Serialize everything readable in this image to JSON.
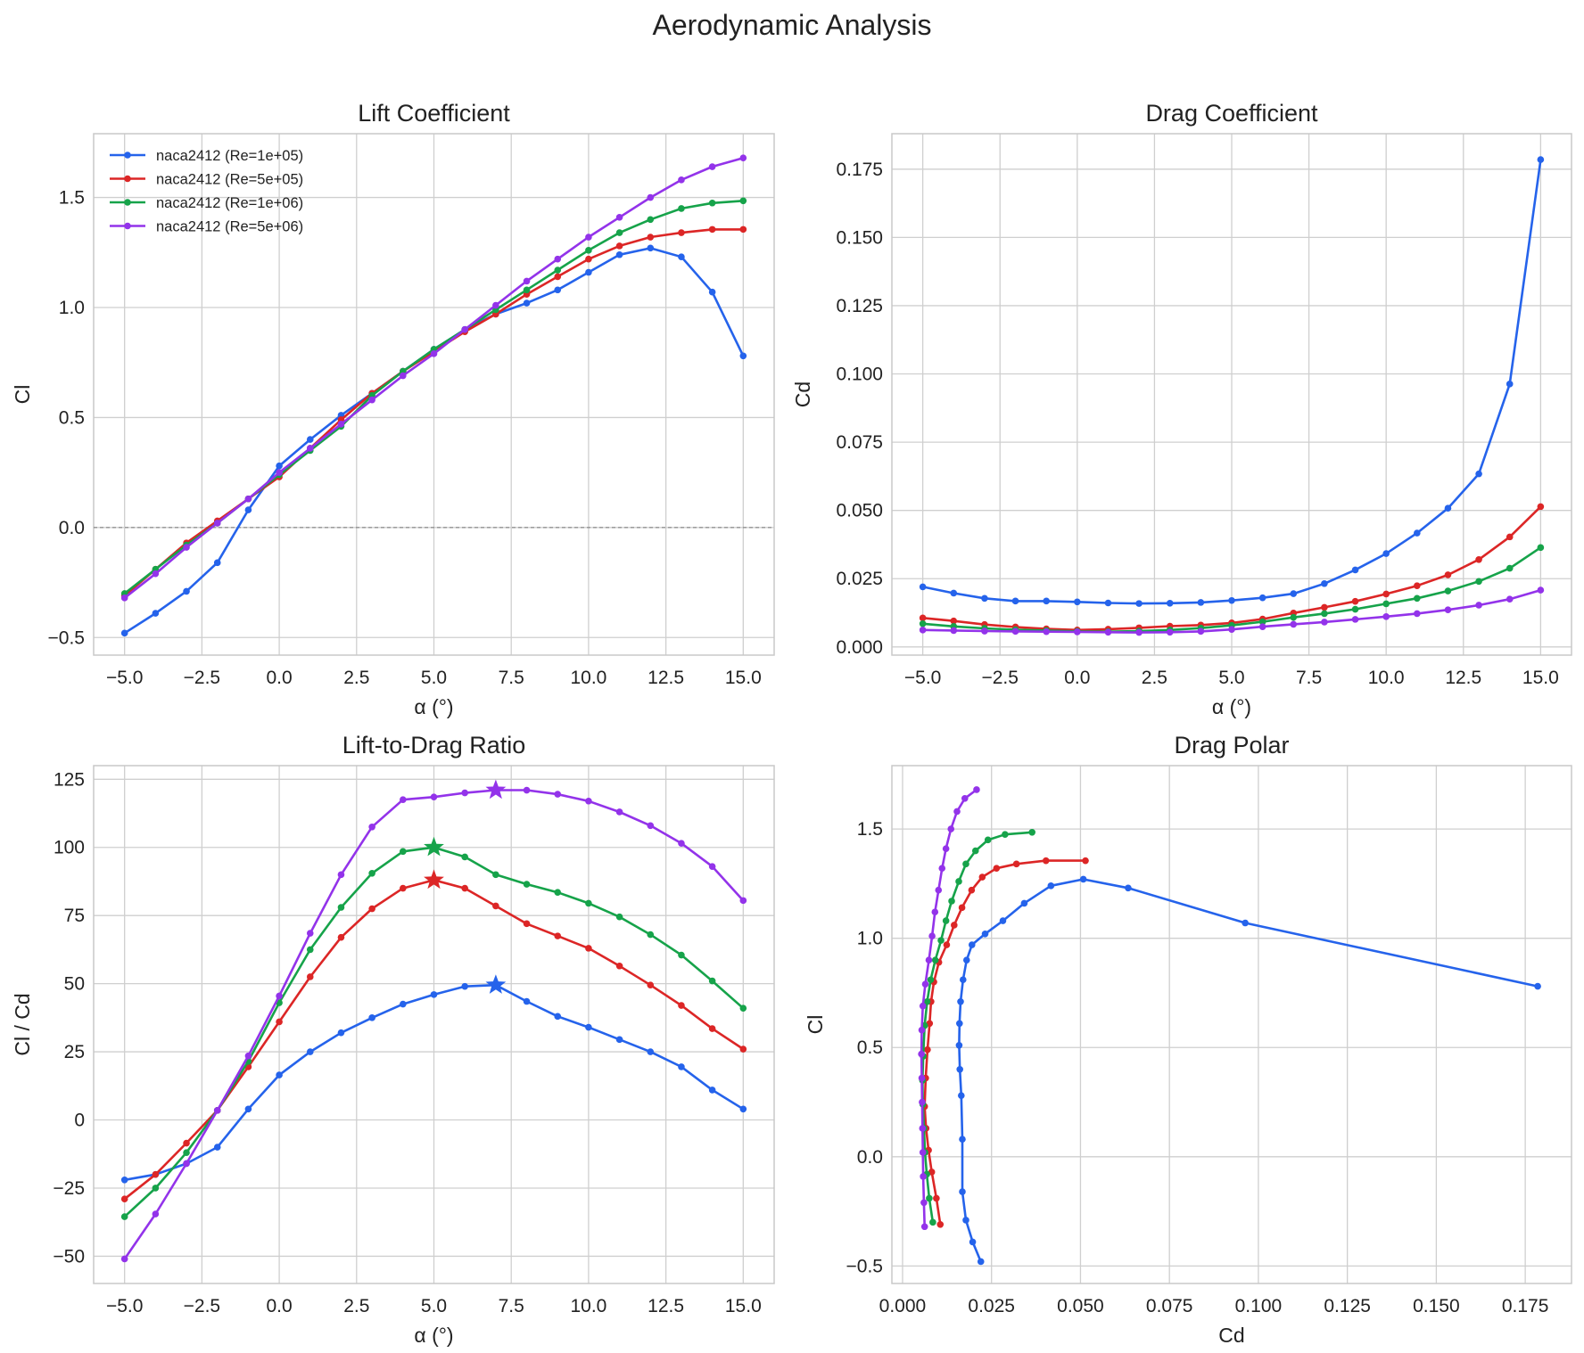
{
  "figure": {
    "title": "Aerodynamic Analysis"
  },
  "colors": {
    "re1e5": "#2563eb",
    "re5e5": "#dc2626",
    "re1e6": "#16a34a",
    "re5e6": "#9333ea",
    "grid": "#cfcfcf",
    "spine": "#c8c8c8"
  },
  "chart_data": [
    {
      "id": "lift",
      "type": "line",
      "title": "Lift Coefficient",
      "xlabel": "α (°)",
      "ylabel": "Cl",
      "xlim": [
        -6,
        16
      ],
      "ylim": [
        -0.58,
        1.79
      ],
      "xticks": [
        -5,
        -2.5,
        0,
        2.5,
        5,
        7.5,
        10,
        12.5,
        15
      ],
      "xtick_labels": [
        "−5.0",
        "−2.5",
        "0.0",
        "2.5",
        "5.0",
        "7.5",
        "10.0",
        "12.5",
        "15.0"
      ],
      "yticks": [
        -0.5,
        0,
        0.5,
        1.0,
        1.5
      ],
      "ytick_labels": [
        "−0.5",
        "0.0",
        "0.5",
        "1.0",
        "1.5"
      ],
      "grid": true,
      "zero_line": true,
      "legend": "upper-left",
      "x": [
        -5,
        -4,
        -3,
        -2,
        -1,
        0,
        1,
        2,
        3,
        4,
        5,
        6,
        7,
        8,
        9,
        10,
        11,
        12,
        13,
        14,
        15
      ],
      "series": [
        {
          "name": "naca2412 (Re=1e+05)",
          "color": "#2563eb",
          "values": [
            -0.48,
            -0.39,
            -0.29,
            -0.16,
            0.08,
            0.28,
            0.4,
            0.51,
            0.61,
            0.71,
            0.81,
            0.9,
            0.97,
            1.02,
            1.08,
            1.16,
            1.24,
            1.27,
            1.23,
            1.07,
            0.78
          ]
        },
        {
          "name": "naca2412 (Re=5e+05)",
          "color": "#dc2626",
          "values": [
            -0.31,
            -0.19,
            -0.07,
            0.03,
            0.13,
            0.23,
            0.36,
            0.49,
            0.61,
            0.71,
            0.8,
            0.89,
            0.97,
            1.06,
            1.14,
            1.22,
            1.28,
            1.32,
            1.34,
            1.355,
            1.355
          ]
        },
        {
          "name": "naca2412 (Re=1e+06)",
          "color": "#16a34a",
          "values": [
            -0.3,
            -0.19,
            -0.08,
            0.02,
            0.13,
            0.24,
            0.35,
            0.46,
            0.6,
            0.71,
            0.81,
            0.9,
            0.99,
            1.08,
            1.17,
            1.26,
            1.34,
            1.4,
            1.45,
            1.475,
            1.485
          ]
        },
        {
          "name": "naca2412 (Re=5e+06)",
          "color": "#9333ea",
          "values": [
            -0.32,
            -0.21,
            -0.09,
            0.02,
            0.13,
            0.25,
            0.36,
            0.47,
            0.58,
            0.69,
            0.79,
            0.9,
            1.01,
            1.12,
            1.22,
            1.32,
            1.41,
            1.5,
            1.58,
            1.64,
            1.68
          ]
        }
      ]
    },
    {
      "id": "drag",
      "type": "line",
      "title": "Drag Coefficient",
      "xlabel": "α (°)",
      "ylabel": "Cd",
      "xlim": [
        -6,
        16
      ],
      "ylim": [
        -0.003,
        0.188
      ],
      "xticks": [
        -5,
        -2.5,
        0,
        2.5,
        5,
        7.5,
        10,
        12.5,
        15
      ],
      "xtick_labels": [
        "−5.0",
        "−2.5",
        "0.0",
        "2.5",
        "5.0",
        "7.5",
        "10.0",
        "12.5",
        "15.0"
      ],
      "yticks": [
        0,
        0.025,
        0.05,
        0.075,
        0.1,
        0.125,
        0.15,
        0.175
      ],
      "ytick_labels": [
        "0.000",
        "0.025",
        "0.050",
        "0.075",
        "0.100",
        "0.125",
        "0.150",
        "0.175"
      ],
      "grid": true,
      "x": [
        -5,
        -4,
        -3,
        -2,
        -1,
        0,
        1,
        2,
        3,
        4,
        5,
        6,
        7,
        8,
        9,
        10,
        11,
        12,
        13,
        14,
        15
      ],
      "series": [
        {
          "color": "#2563eb",
          "values": [
            0.022,
            0.0197,
            0.0178,
            0.0168,
            0.0168,
            0.0165,
            0.0161,
            0.0159,
            0.016,
            0.0163,
            0.017,
            0.018,
            0.0195,
            0.0232,
            0.0282,
            0.0342,
            0.0417,
            0.0508,
            0.0634,
            0.0963,
            0.1785
          ]
        },
        {
          "color": "#dc2626",
          "values": [
            0.0106,
            0.0095,
            0.0082,
            0.0073,
            0.0066,
            0.0062,
            0.0065,
            0.007,
            0.0076,
            0.008,
            0.0088,
            0.0102,
            0.0124,
            0.0145,
            0.0167,
            0.0194,
            0.0224,
            0.0264,
            0.032,
            0.0403,
            0.0514
          ]
        },
        {
          "color": "#16a34a",
          "values": [
            0.0085,
            0.0075,
            0.0068,
            0.0063,
            0.006,
            0.0057,
            0.0056,
            0.0058,
            0.0062,
            0.0069,
            0.0079,
            0.0092,
            0.0108,
            0.0122,
            0.0138,
            0.0158,
            0.0178,
            0.0205,
            0.024,
            0.0288,
            0.0364
          ]
        },
        {
          "color": "#9333ea",
          "values": [
            0.0062,
            0.006,
            0.0058,
            0.0057,
            0.0056,
            0.0055,
            0.0054,
            0.0053,
            0.0054,
            0.0057,
            0.0064,
            0.0074,
            0.0083,
            0.0091,
            0.0101,
            0.0111,
            0.0122,
            0.0136,
            0.0153,
            0.0175,
            0.0208
          ]
        }
      ]
    },
    {
      "id": "ld",
      "type": "line",
      "title": "Lift-to-Drag Ratio",
      "xlabel": "α (°)",
      "ylabel": "Cl / Cd",
      "xlim": [
        -6,
        16
      ],
      "ylim": [
        -60,
        130
      ],
      "xticks": [
        -5,
        -2.5,
        0,
        2.5,
        5,
        7.5,
        10,
        12.5,
        15
      ],
      "xtick_labels": [
        "−5.0",
        "−2.5",
        "0.0",
        "2.5",
        "5.0",
        "7.5",
        "10.0",
        "12.5",
        "15.0"
      ],
      "yticks": [
        -50,
        -25,
        0,
        25,
        50,
        75,
        100,
        125
      ],
      "ytick_labels": [
        "−50",
        "−25",
        "0",
        "25",
        "50",
        "75",
        "100",
        "125"
      ],
      "grid": true,
      "x": [
        -5,
        -4,
        -3,
        -2,
        -1,
        0,
        1,
        2,
        3,
        4,
        5,
        6,
        7,
        8,
        9,
        10,
        11,
        12,
        13,
        14,
        15
      ],
      "series": [
        {
          "color": "#2563eb",
          "max_index": 12,
          "values": [
            -22,
            -20,
            -16,
            -10,
            4,
            16.5,
            25,
            32,
            37.5,
            42.5,
            46,
            49,
            49.5,
            43.5,
            38,
            34,
            29.5,
            25,
            19.5,
            11,
            4
          ]
        },
        {
          "color": "#dc2626",
          "max_index": 10,
          "values": [
            -29,
            -20,
            -8.5,
            3.5,
            19.5,
            36,
            52.5,
            67,
            77.5,
            85,
            88,
            85,
            78.5,
            72,
            67.5,
            63,
            56.5,
            49.5,
            42,
            33.5,
            26
          ]
        },
        {
          "color": "#16a34a",
          "max_index": 10,
          "values": [
            -35.5,
            -25,
            -12,
            3.5,
            21.5,
            43,
            62.5,
            78,
            90.5,
            98.5,
            100,
            96.5,
            90,
            86.5,
            83.5,
            79.5,
            74.5,
            68,
            60.5,
            51,
            41
          ]
        },
        {
          "color": "#9333ea",
          "max_index": 12,
          "values": [
            -51,
            -34.5,
            -16,
            3.5,
            23.5,
            45.5,
            68.5,
            90,
            107.5,
            117.5,
            118.5,
            120,
            121,
            121,
            119.5,
            117,
            113,
            108,
            101.5,
            93,
            80.5
          ]
        }
      ]
    },
    {
      "id": "polar",
      "type": "line",
      "title": "Drag Polar",
      "xlabel": "Cd",
      "ylabel": "Cl",
      "xlim": [
        -0.003,
        0.188
      ],
      "ylim": [
        -0.58,
        1.79
      ],
      "xticks": [
        0,
        0.025,
        0.05,
        0.075,
        0.1,
        0.125,
        0.15,
        0.175
      ],
      "xtick_labels": [
        "0.000",
        "0.025",
        "0.050",
        "0.075",
        "0.100",
        "0.125",
        "0.150",
        "0.175"
      ],
      "yticks": [
        -0.5,
        0,
        0.5,
        1.0,
        1.5
      ],
      "ytick_labels": [
        "−0.5",
        "0.0",
        "0.5",
        "1.0",
        "1.5"
      ],
      "grid": true,
      "series_source": "Cd from drag chart (x), Cl from lift chart (y)"
    }
  ]
}
